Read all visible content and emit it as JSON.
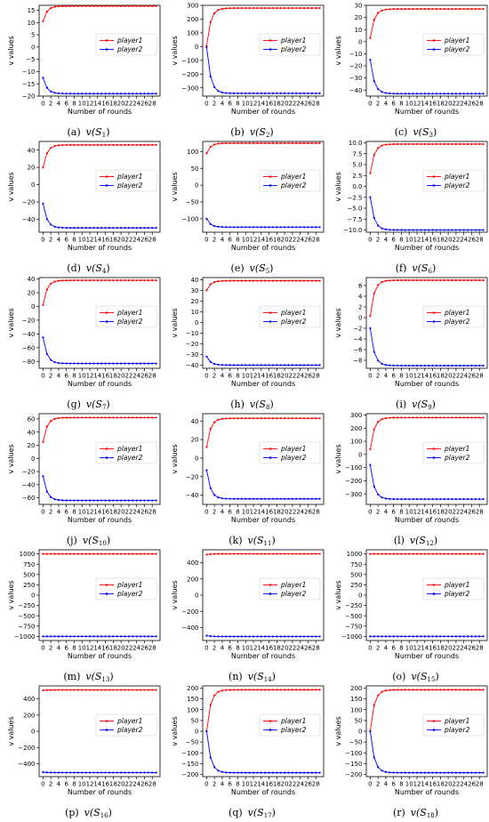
{
  "figure": {
    "series_style": {
      "player1": "#ff0000",
      "player2": "#0000ff"
    }
  },
  "chart_data": [
    {
      "type": "line",
      "xlabel": "Number of rounds",
      "ylabel": "v values",
      "xlim": [
        -1,
        30
      ],
      "ylim": [
        -20,
        17
      ],
      "xticks": [
        0,
        2,
        4,
        6,
        8,
        10,
        12,
        14,
        16,
        18,
        20,
        22,
        24,
        26,
        28
      ],
      "yticks": [
        -20,
        -15,
        -10,
        -5,
        0,
        5,
        10,
        15
      ],
      "legend": "center-right",
      "caption": {
        "letter": "(a)",
        "fn": "v(S",
        "sub": "1",
        "close": ")"
      },
      "series": [
        {
          "name": "player1",
          "color": "#ff0000",
          "y0": 10.5,
          "y_final": 16.7
        },
        {
          "name": "player2",
          "color": "#0000ff",
          "y0": -12.5,
          "y_final": -19.0
        }
      ]
    },
    {
      "type": "line",
      "xlabel": "Number of rounds",
      "ylabel": "v values",
      "xlim": [
        -1,
        30
      ],
      "ylim": [
        -360,
        300
      ],
      "xticks": [
        0,
        2,
        4,
        6,
        8,
        10,
        12,
        14,
        16,
        18,
        20,
        22,
        24,
        26,
        28
      ],
      "yticks": [
        -300,
        -200,
        -100,
        0,
        100,
        200,
        300
      ],
      "legend": "center-right",
      "caption": {
        "letter": "(b)",
        "fn": "v(S",
        "sub": "2",
        "close": ")"
      },
      "series": [
        {
          "name": "player1",
          "color": "#ff0000",
          "y0": 5,
          "y_final": 280
        },
        {
          "name": "player2",
          "color": "#0000ff",
          "y0": -5,
          "y_final": -340
        }
      ]
    },
    {
      "type": "line",
      "xlabel": "Number of rounds",
      "ylabel": "v values",
      "xlim": [
        -1,
        30
      ],
      "ylim": [
        -45,
        30
      ],
      "xticks": [
        0,
        2,
        4,
        6,
        8,
        10,
        12,
        14,
        16,
        18,
        20,
        22,
        24,
        26,
        28
      ],
      "yticks": [
        -40,
        -30,
        -20,
        -10,
        0,
        10,
        20,
        30
      ],
      "legend": "center-right",
      "caption": {
        "letter": "(c)",
        "fn": "v(S",
        "sub": "3",
        "close": ")"
      },
      "series": [
        {
          "name": "player1",
          "color": "#ff0000",
          "y0": 3,
          "y_final": 27
        },
        {
          "name": "player2",
          "color": "#0000ff",
          "y0": -15,
          "y_final": -43
        }
      ]
    },
    {
      "type": "line",
      "xlabel": "Number of rounds",
      "ylabel": "v values",
      "xlim": [
        -1,
        30
      ],
      "ylim": [
        -55,
        50
      ],
      "xticks": [
        0,
        2,
        4,
        6,
        8,
        10,
        12,
        14,
        16,
        18,
        20,
        22,
        24,
        26,
        28
      ],
      "yticks": [
        -40,
        -20,
        0,
        20,
        40
      ],
      "legend": "center-right",
      "caption": {
        "letter": "(d)",
        "fn": "v(S",
        "sub": "4",
        "close": ")"
      },
      "series": [
        {
          "name": "player1",
          "color": "#ff0000",
          "y0": 20,
          "y_final": 46
        },
        {
          "name": "player2",
          "color": "#0000ff",
          "y0": -22,
          "y_final": -50
        }
      ]
    },
    {
      "type": "line",
      "xlabel": "Number of rounds",
      "ylabel": "v values",
      "xlim": [
        -1,
        30
      ],
      "ylim": [
        -140,
        130
      ],
      "xticks": [
        0,
        2,
        4,
        6,
        8,
        10,
        12,
        14,
        16,
        18,
        20,
        22,
        24,
        26,
        28
      ],
      "yticks": [
        -100,
        -50,
        0,
        50,
        100
      ],
      "legend": "center-right",
      "caption": {
        "letter": "(e)",
        "fn": "v(S",
        "sub": "5",
        "close": ")"
      },
      "series": [
        {
          "name": "player1",
          "color": "#ff0000",
          "y0": 95,
          "y_final": 125
        },
        {
          "name": "player2",
          "color": "#0000ff",
          "y0": -100,
          "y_final": -125
        }
      ]
    },
    {
      "type": "line",
      "xlabel": "Number of rounds",
      "ylabel": "v values",
      "xlim": [
        -1,
        30
      ],
      "ylim": [
        -10.5,
        10.3
      ],
      "xticks": [
        0,
        2,
        4,
        6,
        8,
        10,
        12,
        14,
        16,
        18,
        20,
        22,
        24,
        26,
        28
      ],
      "yticks": [
        -10.0,
        -7.5,
        -5.0,
        -2.5,
        0.0,
        2.5,
        5.0,
        7.5,
        10.0
      ],
      "legend": "center-right",
      "caption": {
        "letter": "(f)",
        "fn": "v(S",
        "sub": "6",
        "close": ")"
      },
      "series": [
        {
          "name": "player1",
          "color": "#ff0000",
          "y0": 3,
          "y_final": 9.7
        },
        {
          "name": "player2",
          "color": "#0000ff",
          "y0": -2.5,
          "y_final": -10.0
        }
      ]
    },
    {
      "type": "line",
      "xlabel": "Number of rounds",
      "ylabel": "v values",
      "xlim": [
        -1,
        30
      ],
      "ylim": [
        -90,
        42
      ],
      "xticks": [
        0,
        2,
        4,
        6,
        8,
        10,
        12,
        14,
        16,
        18,
        20,
        22,
        24,
        26,
        28
      ],
      "yticks": [
        -80,
        -60,
        -40,
        -20,
        0,
        20,
        40
      ],
      "legend": "center-right",
      "caption": {
        "letter": "(g)",
        "fn": "v(S",
        "sub": "7",
        "close": ")"
      },
      "series": [
        {
          "name": "player1",
          "color": "#ff0000",
          "y0": 2,
          "y_final": 38
        },
        {
          "name": "player2",
          "color": "#0000ff",
          "y0": -45,
          "y_final": -83
        }
      ]
    },
    {
      "type": "line",
      "xlabel": "Number of rounds",
      "ylabel": "v values",
      "xlim": [
        -1,
        30
      ],
      "ylim": [
        -43,
        42
      ],
      "xticks": [
        0,
        2,
        4,
        6,
        8,
        10,
        12,
        14,
        16,
        18,
        20,
        22,
        24,
        26,
        28
      ],
      "yticks": [
        -40,
        -30,
        -20,
        -10,
        0,
        10,
        20,
        30,
        40
      ],
      "legend": "center-right",
      "caption": {
        "letter": "(h)",
        "fn": "v(S",
        "sub": "8",
        "close": ")"
      },
      "series": [
        {
          "name": "player1",
          "color": "#ff0000",
          "y0": 30,
          "y_final": 39
        },
        {
          "name": "player2",
          "color": "#0000ff",
          "y0": -32,
          "y_final": -40
        }
      ]
    },
    {
      "type": "line",
      "xlabel": "Number of rounds",
      "ylabel": "v values",
      "xlim": [
        -1,
        30
      ],
      "ylim": [
        -9.5,
        7.5
      ],
      "xticks": [
        0,
        2,
        4,
        6,
        8,
        10,
        12,
        14,
        16,
        18,
        20,
        22,
        24,
        26,
        28
      ],
      "yticks": [
        -8,
        -6,
        -4,
        -2,
        0,
        2,
        4,
        6
      ],
      "legend": "center-right",
      "caption": {
        "letter": "(i)",
        "fn": "v(S",
        "sub": "9",
        "close": ")"
      },
      "series": [
        {
          "name": "player1",
          "color": "#ff0000",
          "y0": 0.3,
          "y_final": 7.0
        },
        {
          "name": "player2",
          "color": "#0000ff",
          "y0": -2,
          "y_final": -9.0
        }
      ]
    },
    {
      "type": "line",
      "xlabel": "Number of rounds",
      "ylabel": "v values",
      "xlim": [
        -1,
        30
      ],
      "ylim": [
        -70,
        68
      ],
      "xticks": [
        0,
        2,
        4,
        6,
        8,
        10,
        12,
        14,
        16,
        18,
        20,
        22,
        24,
        26,
        28
      ],
      "yticks": [
        -60,
        -40,
        -20,
        0,
        20,
        40,
        60
      ],
      "legend": "center-right",
      "caption": {
        "letter": "(j)",
        "fn": "v(S",
        "sub": "10",
        "close": ")"
      },
      "series": [
        {
          "name": "player1",
          "color": "#ff0000",
          "y0": 25,
          "y_final": 62
        },
        {
          "name": "player2",
          "color": "#0000ff",
          "y0": -27,
          "y_final": -64
        }
      ]
    },
    {
      "type": "line",
      "xlabel": "Number of rounds",
      "ylabel": "v values",
      "xlim": [
        -1,
        30
      ],
      "ylim": [
        -50,
        48
      ],
      "xticks": [
        0,
        2,
        4,
        6,
        8,
        10,
        12,
        14,
        16,
        18,
        20,
        22,
        24,
        26,
        28
      ],
      "yticks": [
        -40,
        -20,
        0,
        20,
        40
      ],
      "legend": "center-right",
      "caption": {
        "letter": "(k)",
        "fn": "v(S",
        "sub": "11",
        "close": ")"
      },
      "series": [
        {
          "name": "player1",
          "color": "#ff0000",
          "y0": 12,
          "y_final": 43
        },
        {
          "name": "player2",
          "color": "#0000ff",
          "y0": -13,
          "y_final": -44
        }
      ]
    },
    {
      "type": "line",
      "xlabel": "Number of rounds",
      "ylabel": "v values",
      "xlim": [
        -1,
        30
      ],
      "ylim": [
        -380,
        310
      ],
      "xticks": [
        0,
        2,
        4,
        6,
        8,
        10,
        12,
        14,
        16,
        18,
        20,
        22,
        24,
        26,
        28
      ],
      "yticks": [
        -300,
        -200,
        -100,
        0,
        100,
        200,
        300
      ],
      "legend": "center-right",
      "caption": {
        "letter": "(l)",
        "fn": "v(S",
        "sub": "12",
        "close": ")"
      },
      "series": [
        {
          "name": "player1",
          "color": "#ff0000",
          "y0": 40,
          "y_final": 280
        },
        {
          "name": "player2",
          "color": "#0000ff",
          "y0": -80,
          "y_final": -340
        }
      ]
    },
    {
      "type": "line",
      "xlabel": "Number of rounds",
      "ylabel": "v values",
      "xlim": [
        -1,
        30
      ],
      "ylim": [
        -1100,
        1100
      ],
      "xticks": [
        0,
        2,
        4,
        6,
        8,
        10,
        12,
        14,
        16,
        18,
        20,
        22,
        24,
        26,
        28
      ],
      "yticks": [
        -1000,
        -750,
        -500,
        -250,
        0,
        250,
        500,
        750,
        1000
      ],
      "legend": "center-right",
      "caption": {
        "letter": "(m)",
        "fn": "v(S",
        "sub": "13",
        "close": ")"
      },
      "series": [
        {
          "name": "player1",
          "color": "#ff0000",
          "y0": 1000,
          "y_final": 1000
        },
        {
          "name": "player2",
          "color": "#0000ff",
          "y0": -1000,
          "y_final": -1000
        }
      ]
    },
    {
      "type": "line",
      "xlabel": "Number of rounds",
      "ylabel": "v values",
      "xlim": [
        -1,
        30
      ],
      "ylim": [
        -560,
        560
      ],
      "xticks": [
        0,
        2,
        4,
        6,
        8,
        10,
        12,
        14,
        16,
        18,
        20,
        22,
        24,
        26,
        28
      ],
      "yticks": [
        -400,
        -200,
        0,
        200,
        400
      ],
      "legend": "center-right",
      "caption": {
        "letter": "(n)",
        "fn": "v(S",
        "sub": "14",
        "close": ")"
      },
      "series": [
        {
          "name": "player1",
          "color": "#ff0000",
          "y0": 500,
          "y_final": 510
        },
        {
          "name": "player2",
          "color": "#0000ff",
          "y0": -500,
          "y_final": -510
        }
      ]
    },
    {
      "type": "line",
      "xlabel": "Number of rounds",
      "ylabel": "v values",
      "xlim": [
        -1,
        30
      ],
      "ylim": [
        -1100,
        1100
      ],
      "xticks": [
        0,
        2,
        4,
        6,
        8,
        10,
        12,
        14,
        16,
        18,
        20,
        22,
        24,
        26,
        28
      ],
      "yticks": [
        -1000,
        -750,
        -500,
        -250,
        0,
        250,
        500,
        750,
        1000
      ],
      "legend": "center-right",
      "caption": {
        "letter": "(o)",
        "fn": "v(S",
        "sub": "15",
        "close": ")"
      },
      "series": [
        {
          "name": "player1",
          "color": "#ff0000",
          "y0": 1000,
          "y_final": 1000
        },
        {
          "name": "player2",
          "color": "#0000ff",
          "y0": -1000,
          "y_final": -1000
        }
      ]
    },
    {
      "type": "line",
      "xlabel": "Number of rounds",
      "ylabel": "v values",
      "xlim": [
        -1,
        30
      ],
      "ylim": [
        -560,
        560
      ],
      "xticks": [
        0,
        2,
        4,
        6,
        8,
        10,
        12,
        14,
        16,
        18,
        20,
        22,
        24,
        26,
        28
      ],
      "yticks": [
        -400,
        -200,
        0,
        200,
        400
      ],
      "legend": "center-right",
      "caption": {
        "letter": "(p)",
        "fn": "v(S",
        "sub": "16",
        "close": ")"
      },
      "series": [
        {
          "name": "player1",
          "color": "#ff0000",
          "y0": 505,
          "y_final": 510
        },
        {
          "name": "player2",
          "color": "#0000ff",
          "y0": -505,
          "y_final": -510
        }
      ]
    },
    {
      "type": "line",
      "xlabel": "Number of rounds",
      "ylabel": "v values",
      "xlim": [
        -1,
        30
      ],
      "ylim": [
        -210,
        210
      ],
      "xticks": [
        0,
        2,
        4,
        6,
        8,
        10,
        12,
        14,
        16,
        18,
        20,
        22,
        24,
        26,
        28
      ],
      "yticks": [
        -200,
        -150,
        -100,
        -50,
        0,
        50,
        100,
        150,
        200
      ],
      "legend": "center-right",
      "caption": {
        "letter": "(q)",
        "fn": "v(S",
        "sub": "17",
        "close": ")"
      },
      "series": [
        {
          "name": "player1",
          "color": "#ff0000",
          "y0": 0,
          "y_final": 192
        },
        {
          "name": "player2",
          "color": "#0000ff",
          "y0": 0,
          "y_final": -192
        }
      ]
    },
    {
      "type": "line",
      "xlabel": "Number of rounds",
      "ylabel": "v values",
      "xlim": [
        -1,
        30
      ],
      "ylim": [
        -210,
        210
      ],
      "xticks": [
        0,
        2,
        4,
        6,
        8,
        10,
        12,
        14,
        16,
        18,
        20,
        22,
        24,
        26,
        28
      ],
      "yticks": [
        -200,
        -150,
        -100,
        -50,
        0,
        50,
        100,
        150,
        200
      ],
      "legend": "center-right",
      "caption": {
        "letter": "(r)",
        "fn": "v(S",
        "sub": "18",
        "close": ")"
      },
      "series": [
        {
          "name": "player1",
          "color": "#ff0000",
          "y0": 0,
          "y_final": 192
        },
        {
          "name": "player2",
          "color": "#0000ff",
          "y0": 0,
          "y_final": -192
        }
      ]
    }
  ]
}
